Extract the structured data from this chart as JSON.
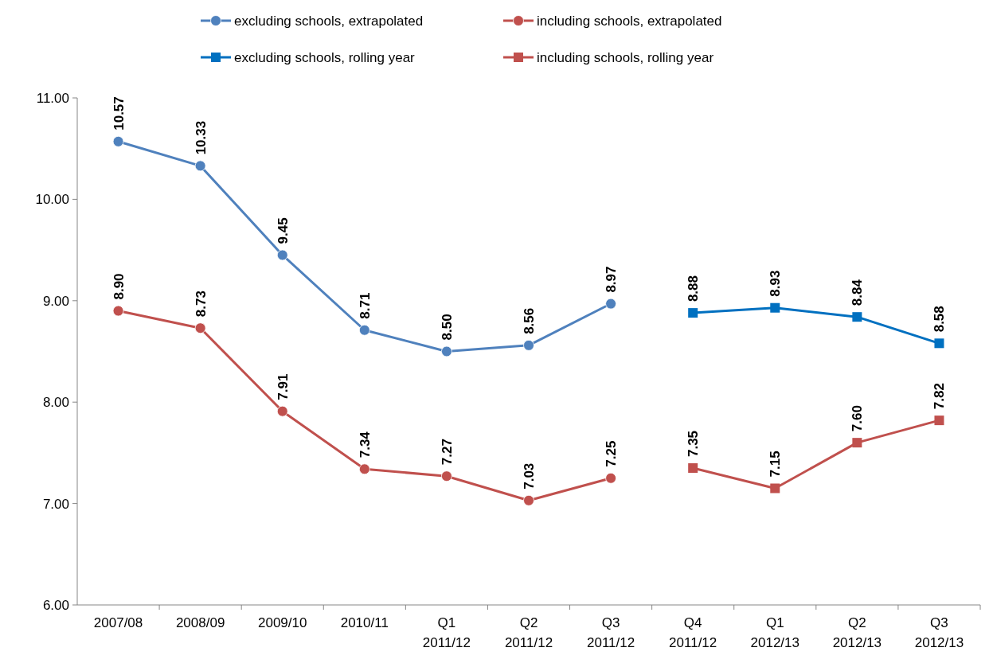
{
  "chart_data": {
    "type": "line",
    "categories": [
      "2007/08",
      "2008/09",
      "2009/10",
      "2010/11",
      "Q1\n2011/12",
      "Q2\n2011/12",
      "Q3\n2011/12",
      "Q4\n2011/12",
      "Q1\n2012/13",
      "Q2\n2012/13",
      "Q3\n2012/13"
    ],
    "series": [
      {
        "name": "excluding schools, extrapolated",
        "color": "#4f81bd",
        "marker": "circle",
        "values": [
          10.57,
          10.33,
          9.45,
          8.71,
          8.5,
          8.56,
          8.97,
          null,
          null,
          null,
          null
        ],
        "value_labels": [
          "10.57",
          "10.33",
          "9.45",
          "8.71",
          "8.50",
          "8.56",
          "8.97",
          null,
          null,
          null,
          null
        ]
      },
      {
        "name": "including schools, extrapolated",
        "color": "#c0504d",
        "marker": "circle",
        "values": [
          8.9,
          8.73,
          7.91,
          7.34,
          7.27,
          7.03,
          7.25,
          null,
          null,
          null,
          null
        ],
        "value_labels": [
          "8.90",
          "8.73",
          "7.91",
          "7.34",
          "7.27",
          "7.03",
          "7.25",
          null,
          null,
          null,
          null
        ]
      },
      {
        "name": "excluding schools, rolling year",
        "color": "#0070c0",
        "marker": "square",
        "values": [
          null,
          null,
          null,
          null,
          null,
          null,
          null,
          8.88,
          8.93,
          8.84,
          8.58
        ],
        "value_labels": [
          null,
          null,
          null,
          null,
          null,
          null,
          null,
          "8.88",
          "8.93",
          "8.84",
          "8.58"
        ]
      },
      {
        "name": "including schools, rolling year",
        "color": "#c0504d",
        "marker": "square",
        "values": [
          null,
          null,
          null,
          null,
          null,
          null,
          null,
          7.35,
          7.15,
          7.6,
          7.82
        ],
        "value_labels": [
          null,
          null,
          null,
          null,
          null,
          null,
          null,
          "7.35",
          "7.15",
          "7.60",
          "7.82"
        ]
      }
    ],
    "ylim": [
      6,
      11
    ],
    "yticks": [
      {
        "value": 6,
        "label": "6.00"
      },
      {
        "value": 7,
        "label": "7.00"
      },
      {
        "value": 8,
        "label": "8.00"
      },
      {
        "value": 9,
        "label": "9.00"
      },
      {
        "value": 10,
        "label": "10.00"
      },
      {
        "value": 11,
        "label": "11.00"
      }
    ],
    "legend": "top",
    "grid": false,
    "line_style": "solid"
  }
}
